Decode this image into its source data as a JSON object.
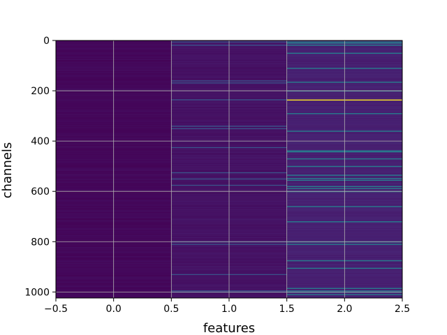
{
  "chart_data": {
    "type": "heatmap",
    "title": "",
    "xlabel": "features",
    "ylabel": "channels",
    "x_ticks": [
      "−0.5",
      "0.0",
      "0.5",
      "1.0",
      "1.5",
      "2.0",
      "2.5"
    ],
    "x_tick_values": [
      -0.5,
      0.0,
      0.5,
      1.0,
      1.5,
      2.0,
      2.5
    ],
    "y_ticks": [
      "0",
      "200",
      "400",
      "600",
      "800",
      "1000"
    ],
    "y_tick_values": [
      0,
      200,
      400,
      600,
      800,
      1000
    ],
    "xlim": [
      -0.5,
      2.5
    ],
    "ylim": [
      1024,
      0
    ],
    "n_features": 3,
    "n_channels": 1024,
    "colormap": "viridis",
    "grid": true,
    "grid_color": "#b0b0b0",
    "base_levels": [
      0.02,
      0.05,
      0.09
    ],
    "highlights": [
      {
        "feature": 1,
        "channels": [
          5,
          18,
          160,
          168,
          235,
          340,
          350,
          425,
          525,
          550,
          575,
          800,
          810,
          930,
          995,
          1000
        ],
        "level": 0.25
      },
      {
        "feature": 2,
        "channels": [
          5,
          10,
          18,
          50,
          110,
          165,
          200,
          290,
          360,
          438,
          442,
          470,
          500,
          535,
          548,
          555,
          580,
          588,
          600,
          660,
          720,
          800,
          810,
          875,
          905,
          985,
          995,
          1000,
          1010
        ],
        "level": 0.42
      },
      {
        "feature": 2,
        "channels": [
          236
        ],
        "level": 1.0
      }
    ]
  }
}
